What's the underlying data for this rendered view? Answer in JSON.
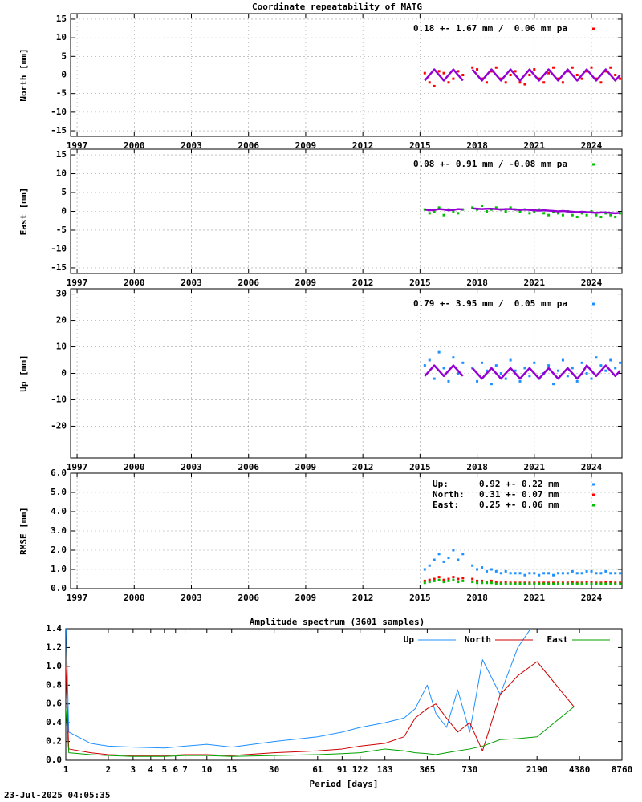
{
  "timestamp": "23-Jul-2025 04:05:35",
  "chart_data": [
    {
      "type": "scatter",
      "title": "Coordinate repeatability of MATG",
      "ylabel": "North [mm]",
      "xlim": [
        1996.66,
        2025.6
      ],
      "ylim": [
        -16.5,
        16.5
      ],
      "grid": true,
      "legend": "top right",
      "xticks": [
        1997,
        2000,
        2003,
        2006,
        2009,
        2012,
        2015,
        2018,
        2021,
        2024
      ],
      "yticks": [
        -15,
        -10,
        -5,
        0,
        5,
        10,
        15
      ],
      "x": [
        2015.25,
        2015.5,
        2015.75,
        2016,
        2016.25,
        2016.5,
        2016.75,
        2017,
        2017.25,
        2017.5,
        2017.75,
        2018,
        2018.25,
        2018.5,
        2018.75,
        2019,
        2019.25,
        2019.5,
        2019.75,
        2020,
        2020.25,
        2020.5,
        2020.75,
        2021,
        2021.25,
        2021.5,
        2021.75,
        2022,
        2022.25,
        2022.5,
        2022.75,
        2023,
        2023.25,
        2023.5,
        2023.75,
        2024,
        2024.25,
        2024.5,
        2024.75,
        2025,
        2025.25,
        2025.5
      ],
      "series": [
        {
          "name": "0.18 +- 1.67 mm /  0.06 mm pa",
          "kind": "points",
          "color": "#ff0000",
          "values": [
            0.5,
            -2,
            -3,
            1,
            0.5,
            -2,
            -1,
            1,
            0,
            null,
            2,
            1.5,
            -1,
            -2,
            1,
            2,
            -1,
            -2,
            0,
            1,
            -2,
            -2.5,
            0,
            1.5,
            -1,
            -2,
            0.5,
            2,
            -1,
            -2,
            1,
            2,
            0,
            -1,
            1,
            2,
            -1,
            -2,
            1,
            2,
            0,
            -1
          ]
        },
        {
          "kind": "line",
          "color": "#9400d3",
          "values": [
            -1.5,
            0,
            1.5,
            0,
            -1.5,
            0,
            1.5,
            0,
            -1.5,
            null,
            1.5,
            0,
            -1.5,
            0,
            1.5,
            0,
            -1.5,
            0,
            1.5,
            0,
            -1.5,
            0,
            1.5,
            0,
            -1.5,
            0,
            1.5,
            0,
            -1.5,
            0,
            1.5,
            0,
            -1.5,
            0,
            1.5,
            0,
            -1.5,
            0,
            1.5,
            0,
            -1.5,
            0
          ]
        }
      ]
    },
    {
      "type": "scatter",
      "ylabel": "East [mm]",
      "xlim": [
        1996.66,
        2025.6
      ],
      "ylim": [
        -16.5,
        16.5
      ],
      "grid": true,
      "legend": "top right",
      "xticks": [
        1997,
        2000,
        2003,
        2006,
        2009,
        2012,
        2015,
        2018,
        2021,
        2024
      ],
      "yticks": [
        -15,
        -10,
        -5,
        0,
        5,
        10,
        15
      ],
      "x": [
        2015.25,
        2015.5,
        2015.75,
        2016,
        2016.25,
        2016.5,
        2016.75,
        2017,
        2017.25,
        2017.5,
        2017.75,
        2018,
        2018.25,
        2018.5,
        2018.75,
        2019,
        2019.25,
        2019.5,
        2019.75,
        2020,
        2020.25,
        2020.5,
        2020.75,
        2021,
        2021.25,
        2021.5,
        2021.75,
        2022,
        2022.25,
        2022.5,
        2022.75,
        2023,
        2023.25,
        2023.5,
        2023.75,
        2024,
        2024.25,
        2024.5,
        2024.75,
        2025,
        2025.25,
        2025.5
      ],
      "series": [
        {
          "name": "0.08 +- 0.91 mm / -0.08 mm pa",
          "kind": "points",
          "color": "#00c000",
          "values": [
            0.5,
            -0.5,
            0,
            1,
            -1,
            0.5,
            0,
            -0.5,
            0.5,
            null,
            1,
            0.5,
            1.5,
            0,
            0.5,
            1,
            0.5,
            0,
            1,
            0.5,
            0,
            0.5,
            -0.5,
            0,
            0.5,
            -0.5,
            -1,
            0,
            -0.5,
            -1,
            0,
            -1,
            -1.5,
            -0.5,
            -1,
            0,
            -1,
            -1.5,
            -0.5,
            -1,
            -1.5,
            -0.5
          ]
        },
        {
          "kind": "line",
          "color": "#9400d3",
          "values": [
            0.5,
            0.3,
            0.4,
            0.6,
            0.5,
            0.3,
            0.4,
            0.6,
            0.5,
            null,
            0.8,
            0.7,
            0.6,
            0.7,
            0.7,
            0.6,
            0.5,
            0.6,
            0.6,
            0.5,
            0.4,
            0.5,
            0.4,
            0.3,
            0.2,
            0.3,
            0.2,
            0.1,
            0,
            0.1,
            0,
            -0.1,
            -0.2,
            -0.1,
            -0.2,
            -0.3,
            -0.4,
            -0.3,
            -0.3,
            -0.4,
            -0.5,
            -0.4
          ]
        }
      ]
    },
    {
      "type": "scatter",
      "ylabel": "Up [mm]",
      "xlim": [
        1996.66,
        2025.6
      ],
      "ylim": [
        -32,
        32
      ],
      "grid": true,
      "legend": "top right",
      "xticks": [
        1997,
        2000,
        2003,
        2006,
        2009,
        2012,
        2015,
        2018,
        2021,
        2024
      ],
      "yticks": [
        -20,
        -10,
        0,
        10,
        20,
        30
      ],
      "x": [
        2015.25,
        2015.5,
        2015.75,
        2016,
        2016.25,
        2016.5,
        2016.75,
        2017,
        2017.25,
        2017.5,
        2017.75,
        2018,
        2018.25,
        2018.5,
        2018.75,
        2019,
        2019.25,
        2019.5,
        2019.75,
        2020,
        2020.25,
        2020.5,
        2020.75,
        2021,
        2021.25,
        2021.5,
        2021.75,
        2022,
        2022.25,
        2022.5,
        2022.75,
        2023,
        2023.25,
        2023.5,
        2023.75,
        2024,
        2024.25,
        2024.5,
        2024.75,
        2025,
        2025.25,
        2025.5
      ],
      "series": [
        {
          "name": "0.79 +- 3.95 mm /  0.05 mm pa",
          "kind": "points",
          "color": "#1e90ff",
          "values": [
            3,
            5,
            -2,
            8,
            2,
            -3,
            6,
            0,
            4,
            null,
            2,
            -3,
            4,
            1,
            -4,
            3,
            0,
            -2,
            5,
            1,
            -3,
            2,
            -1,
            4,
            -2,
            0,
            3,
            -4,
            1,
            5,
            -1,
            2,
            -3,
            4,
            0,
            -2,
            6,
            3,
            1,
            5,
            2,
            4
          ]
        },
        {
          "kind": "line",
          "color": "#9400d3",
          "values": [
            -1,
            1,
            3,
            1,
            -1,
            1,
            3,
            1,
            -1,
            null,
            2,
            0,
            -2,
            0,
            2,
            0,
            -2,
            0,
            2,
            0,
            -2,
            0,
            2,
            0,
            -2,
            0,
            2,
            0,
            -2,
            0,
            2,
            0,
            -2,
            0,
            3,
            1,
            -1,
            1,
            3,
            1,
            -1,
            1
          ]
        }
      ]
    },
    {
      "type": "scatter",
      "ylabel": "RMSE [mm]",
      "xlim": [
        1996.66,
        2025.6
      ],
      "ylim": [
        0,
        6
      ],
      "grid": true,
      "legend": "top right",
      "xticks": [
        1997,
        2000,
        2003,
        2006,
        2009,
        2012,
        2015,
        2018,
        2021,
        2024
      ],
      "yticks": [
        {
          "value": 0,
          "label": "0.0"
        },
        {
          "value": 1,
          "label": "1.0"
        },
        {
          "value": 2,
          "label": "2.0"
        },
        {
          "value": 3,
          "label": "3.0"
        },
        {
          "value": 4,
          "label": "4.0"
        },
        {
          "value": 5,
          "label": "5.0"
        },
        {
          "value": 6,
          "label": "6.0"
        }
      ],
      "x": [
        2015.25,
        2015.5,
        2015.75,
        2016,
        2016.25,
        2016.5,
        2016.75,
        2017,
        2017.25,
        2017.5,
        2017.75,
        2018,
        2018.25,
        2018.5,
        2018.75,
        2019,
        2019.25,
        2019.5,
        2019.75,
        2020,
        2020.25,
        2020.5,
        2020.75,
        2021,
        2021.25,
        2021.5,
        2021.75,
        2022,
        2022.25,
        2022.5,
        2022.75,
        2023,
        2023.25,
        2023.5,
        2023.75,
        2024,
        2024.25,
        2024.5,
        2024.75,
        2025,
        2025.25,
        2025.5
      ],
      "series": [
        {
          "name": "Up:",
          "stat": "0.92 +- 0.22 mm",
          "kind": "points",
          "color": "#1e90ff",
          "values": [
            1,
            1.2,
            1.5,
            1.8,
            1.4,
            1.6,
            2,
            1.5,
            1.8,
            null,
            1.2,
            1,
            1.1,
            0.9,
            1,
            0.9,
            0.8,
            0.9,
            0.8,
            0.8,
            0.8,
            0.7,
            0.8,
            0.8,
            0.7,
            0.8,
            0.8,
            0.7,
            0.8,
            0.8,
            0.8,
            0.9,
            0.8,
            0.8,
            0.9,
            0.9,
            0.8,
            0.8,
            0.9,
            0.8,
            0.8,
            0.8
          ]
        },
        {
          "name": "North:",
          "stat": "0.31 +- 0.07 mm",
          "kind": "points",
          "color": "#ff0000",
          "values": [
            0.4,
            0.45,
            0.5,
            0.6,
            0.45,
            0.5,
            0.6,
            0.5,
            0.55,
            null,
            0.5,
            0.4,
            0.4,
            0.35,
            0.4,
            0.35,
            0.3,
            0.35,
            0.3,
            0.3,
            0.3,
            0.3,
            0.3,
            0.3,
            0.3,
            0.3,
            0.3,
            0.3,
            0.3,
            0.3,
            0.3,
            0.35,
            0.3,
            0.3,
            0.35,
            0.35,
            0.3,
            0.3,
            0.35,
            0.35,
            0.3,
            0.3
          ]
        },
        {
          "name": "East:",
          "stat": "0.25 +- 0.06 mm",
          "kind": "points",
          "color": "#00c000",
          "values": [
            0.3,
            0.35,
            0.4,
            0.45,
            0.35,
            0.4,
            0.45,
            0.35,
            0.4,
            null,
            0.35,
            0.3,
            0.3,
            0.3,
            0.3,
            0.25,
            0.25,
            0.25,
            0.25,
            0.25,
            0.25,
            0.25,
            0.25,
            0.25,
            0.25,
            0.25,
            0.25,
            0.25,
            0.25,
            0.25,
            0.25,
            0.25,
            0.25,
            0.25,
            0.25,
            0.25,
            0.25,
            0.25,
            0.25,
            0.25,
            0.25,
            0.25
          ]
        }
      ]
    },
    {
      "type": "line",
      "title": "Amplitude spectrum (3601 samples)",
      "xlabel": "Period [days]",
      "logx": true,
      "xlim": [
        1,
        8760
      ],
      "ylim": [
        0,
        1.4
      ],
      "grid": false,
      "legend": "top right",
      "xticks": [
        1,
        2,
        3,
        4,
        5,
        6,
        7,
        10,
        15,
        30,
        61,
        91,
        122,
        183,
        365,
        730,
        2190,
        4380,
        8760
      ],
      "yticks": [
        {
          "value": 0,
          "label": "0.0"
        },
        0.2,
        0.4,
        0.6,
        0.8,
        {
          "value": 1,
          "label": "1.0"
        },
        1.2,
        1.4
      ],
      "x": [
        1,
        1.05,
        1.5,
        2,
        3,
        5,
        7,
        10,
        15,
        30,
        61,
        91,
        122,
        183,
        250,
        300,
        365,
        420,
        500,
        600,
        730,
        900,
        1200,
        1600,
        2190,
        4000
      ],
      "series": [
        {
          "name": "Up",
          "color": "#1e90ff",
          "values": [
            1.6,
            0.3,
            0.18,
            0.15,
            0.14,
            0.13,
            0.15,
            0.17,
            0.14,
            0.2,
            0.25,
            0.3,
            0.35,
            0.4,
            0.45,
            0.55,
            0.8,
            0.5,
            0.35,
            0.75,
            0.3,
            1.07,
            0.7,
            1.2,
            1.5,
            null
          ]
        },
        {
          "name": "North",
          "color": "#cc0000",
          "values": [
            1.0,
            0.12,
            0.08,
            0.06,
            0.05,
            0.05,
            0.06,
            0.06,
            0.05,
            0.08,
            0.1,
            0.12,
            0.15,
            0.18,
            0.25,
            0.45,
            0.55,
            0.6,
            0.45,
            0.3,
            0.4,
            0.1,
            0.7,
            0.9,
            1.05,
            0.57
          ]
        },
        {
          "name": "East",
          "color": "#00a000",
          "values": [
            0.55,
            0.08,
            0.06,
            0.05,
            0.04,
            0.04,
            0.05,
            0.05,
            0.04,
            0.05,
            0.06,
            0.07,
            0.08,
            0.12,
            0.1,
            0.08,
            0.07,
            0.06,
            0.08,
            0.1,
            0.12,
            0.15,
            0.22,
            0.23,
            0.25,
            0.57
          ]
        }
      ]
    }
  ]
}
